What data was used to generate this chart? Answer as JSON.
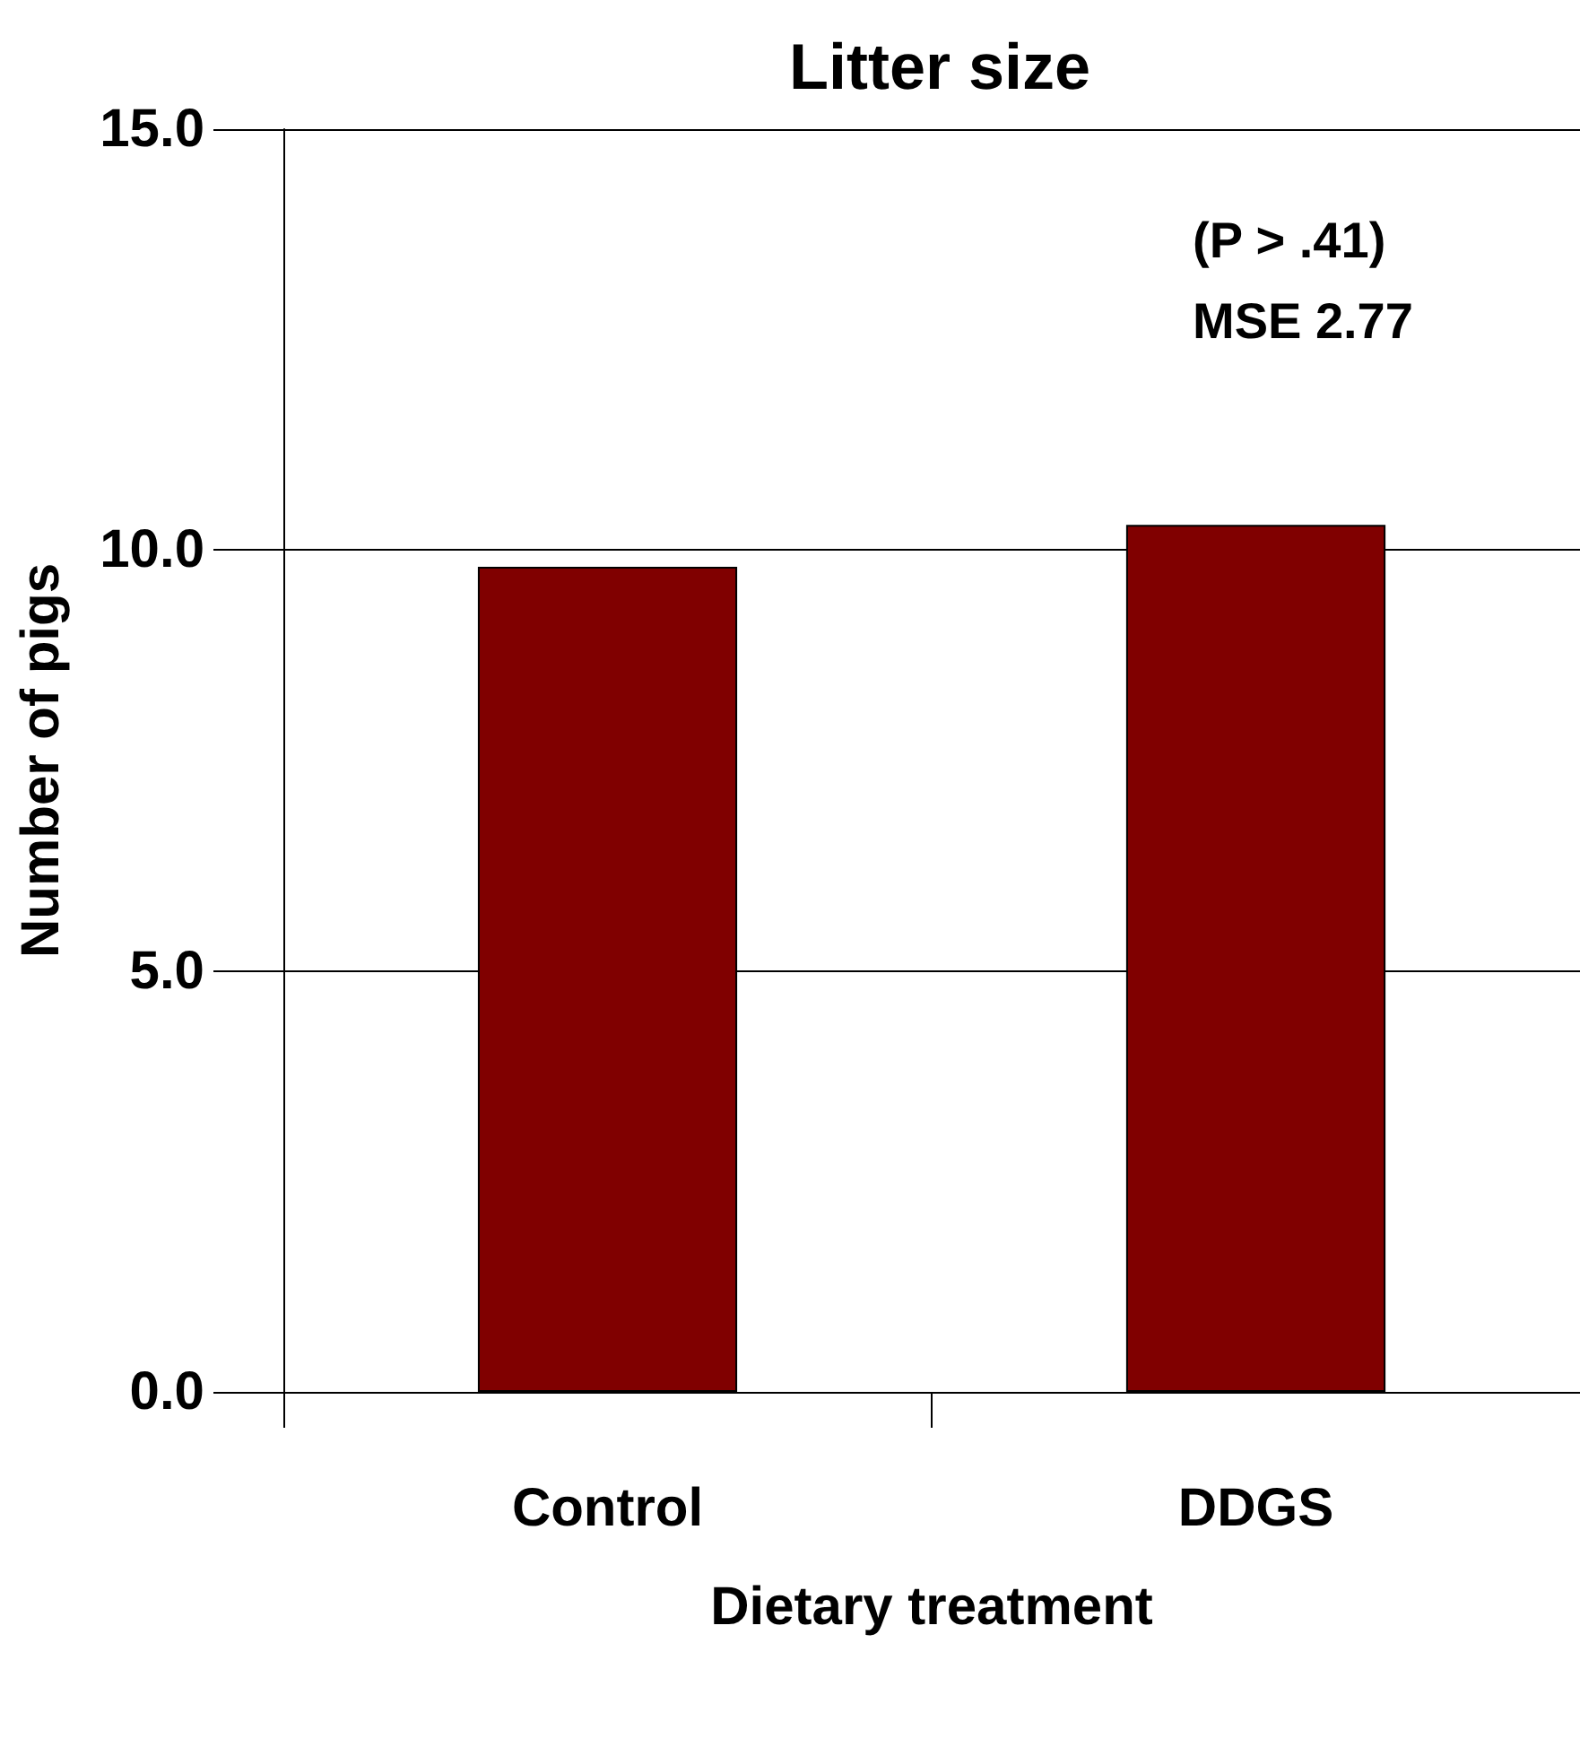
{
  "chart_data": {
    "type": "bar",
    "title": "Litter size",
    "xlabel": "Dietary treatment",
    "ylabel": "Number of pigs",
    "categories": [
      "Control",
      "DDGS"
    ],
    "series": [
      {
        "color": "#800000",
        "values": [
          9.8,
          10.3
        ]
      }
    ],
    "ylim": [
      0,
      15
    ],
    "yticks": [
      {
        "value": 0,
        "label": "0.0"
      },
      {
        "value": 5,
        "label": "5.0"
      },
      {
        "value": 10,
        "label": "10.0"
      },
      {
        "value": 15,
        "label": "15.0"
      }
    ],
    "grid": "y",
    "annotations": [
      "(P > .41)",
      "MSE 2.77"
    ]
  }
}
